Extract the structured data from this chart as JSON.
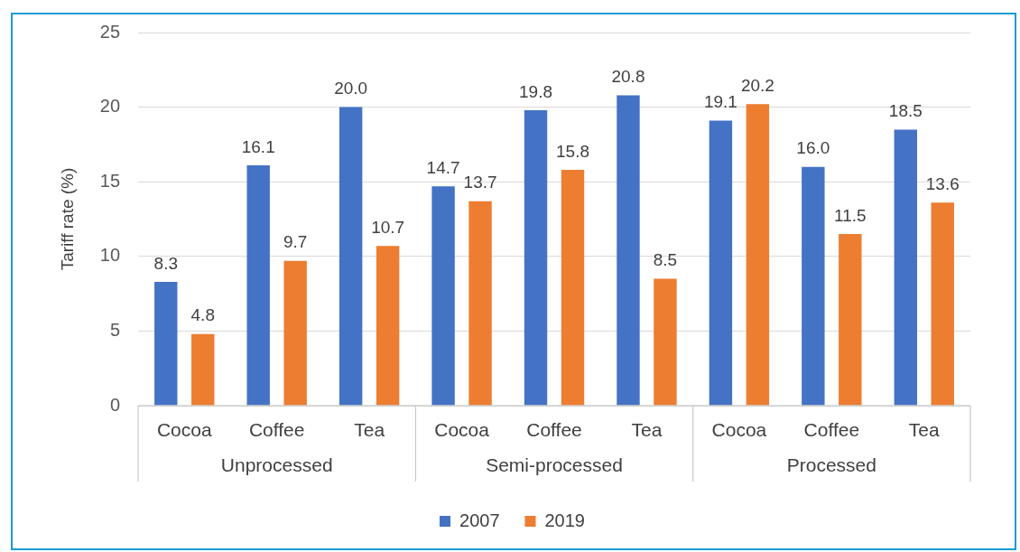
{
  "chart_data": {
    "type": "bar",
    "ylabel": "Tariff rate (%)",
    "categories": [
      "Cocoa",
      "Coffee",
      "Tea",
      "Cocoa",
      "Coffee",
      "Tea",
      "Cocoa",
      "Coffee",
      "Tea"
    ],
    "annotations": [
      "Unprocessed",
      "Semi-processed",
      "Processed"
    ],
    "series": [
      {
        "name": "2007",
        "color": "#4472c4",
        "values": [
          8.3,
          16.1,
          20.0,
          14.7,
          19.8,
          20.8,
          19.1,
          16.0,
          18.5
        ],
        "value_labels": [
          "8.3",
          "16.1",
          "20.0",
          "14.7",
          "19.8",
          "20.8",
          "19.1",
          "16.0",
          "18.5"
        ]
      },
      {
        "name": "2019",
        "color": "#ed7d31",
        "values": [
          4.8,
          9.7,
          10.7,
          13.7,
          15.8,
          8.5,
          20.2,
          11.5,
          13.6
        ],
        "value_labels": [
          "4.8",
          "9.7",
          "10.7",
          "13.7",
          "15.8",
          "8.5",
          "20.2",
          "11.5",
          "13.6"
        ]
      }
    ],
    "ylim": [
      0,
      25
    ],
    "yticks": [
      0,
      5,
      10,
      15,
      20,
      25
    ],
    "grid": "y",
    "legend": "bottom"
  }
}
